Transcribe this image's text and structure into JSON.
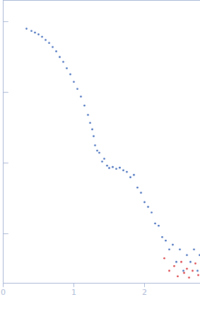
{
  "chart_data": {
    "type": "scatter",
    "xlim": [
      0,
      2.79
    ],
    "xticks": [
      0,
      1,
      2
    ],
    "ylim": [
      0.0002,
      2
    ],
    "yticks": [
      0.001,
      0.01,
      0.1,
      1
    ],
    "log": "y",
    "tick_labels": "x",
    "grid": false,
    "series": [
      {
        "color": "#3a66b8",
        "marker": "circle",
        "x": [
          0.33,
          0.4,
          0.45,
          0.5,
          0.55,
          0.6,
          0.65,
          0.7,
          0.75,
          0.8,
          0.85,
          0.9,
          0.95,
          1.0,
          1.05,
          1.1,
          1.15,
          1.2,
          1.23,
          1.26,
          1.28,
          1.3,
          1.33,
          1.36,
          1.4,
          1.43,
          1.47,
          1.5,
          1.55,
          1.6,
          1.65,
          1.7,
          1.75,
          1.8,
          1.85,
          1.9,
          1.95,
          2.0,
          2.05,
          2.1,
          2.15,
          2.2,
          2.25,
          2.3,
          2.35,
          2.4,
          2.45,
          2.5,
          2.55,
          2.6,
          2.65,
          2.7,
          2.75,
          2.78
        ],
        "values": [
          0.794,
          0.74,
          0.7,
          0.661,
          0.61,
          0.55,
          0.5,
          0.437,
          0.38,
          0.316,
          0.27,
          0.219,
          0.18,
          0.141,
          0.112,
          0.0871,
          0.065,
          0.0479,
          0.037,
          0.03,
          0.024,
          0.0178,
          0.015,
          0.014,
          0.0105,
          0.0115,
          0.0092,
          0.0085,
          0.0088,
          0.0083,
          0.0086,
          0.0079,
          0.0075,
          0.0063,
          0.0068,
          0.0045,
          0.0038,
          0.0028,
          0.0024,
          0.002,
          0.0014,
          0.0013,
          0.0009,
          0.0008,
          0.0006,
          0.0007,
          0.0004,
          0.0006,
          0.0003,
          0.0005,
          0.0004,
          0.0006,
          0.0003,
          0.0005
        ]
      },
      {
        "color": "#d9343a",
        "marker": "circle",
        "x": [
          2.28,
          2.35,
          2.42,
          2.47,
          2.52,
          2.56,
          2.6,
          2.63,
          2.68,
          2.72,
          2.76
        ],
        "values": [
          0.00045,
          0.0003,
          0.00035,
          0.00025,
          0.0004,
          0.00028,
          0.00032,
          0.00024,
          0.0003,
          0.00038,
          0.00026
        ]
      }
    ]
  }
}
